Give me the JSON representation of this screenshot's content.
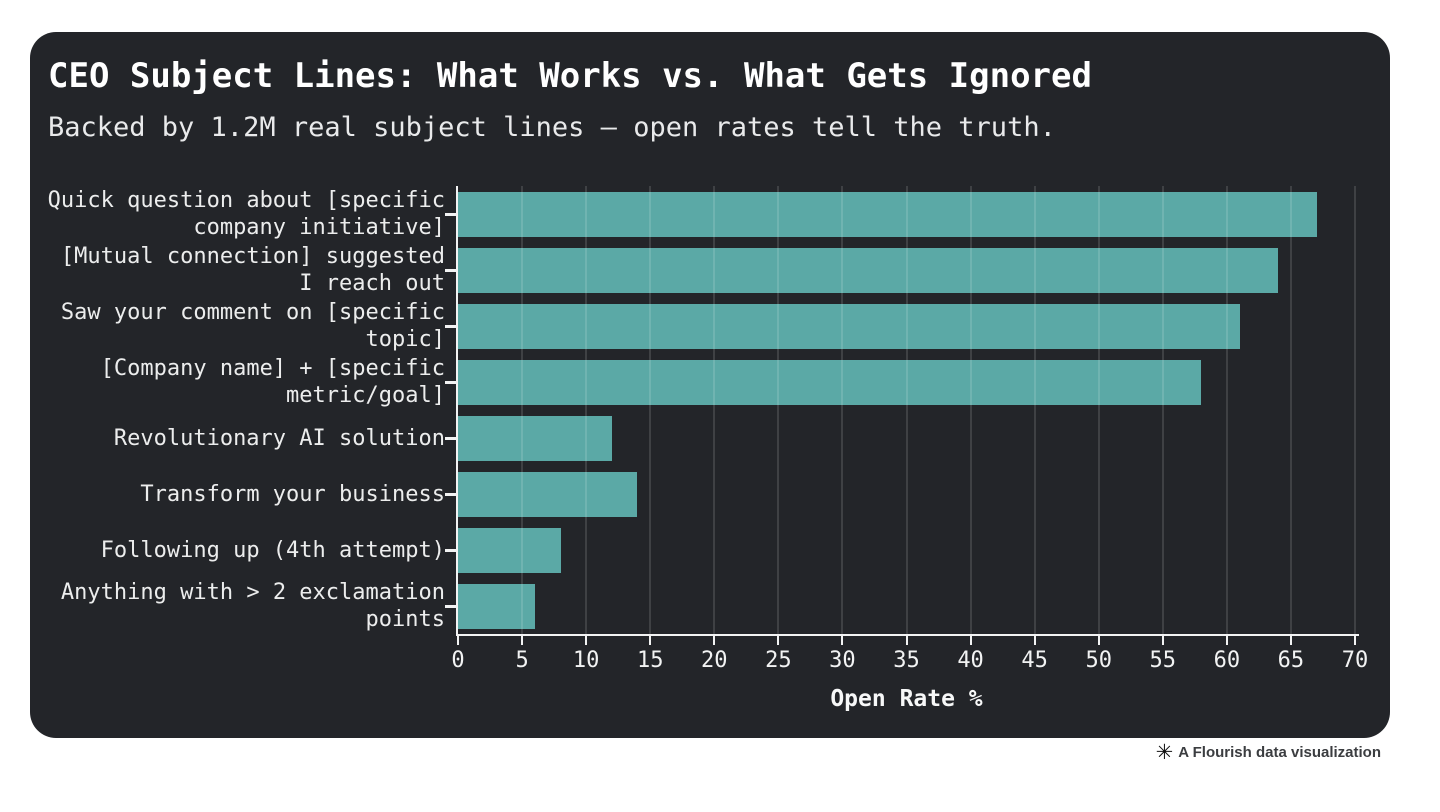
{
  "header": {
    "title": "CEO Subject Lines: What Works vs. What Gets Ignored",
    "subtitle": "Backed by 1.2M real subject lines — open rates tell the truth."
  },
  "footer": {
    "icon": "✳︎",
    "attribution": "A Flourish data visualization"
  },
  "chart_data": {
    "type": "bar",
    "orientation": "horizontal",
    "title": "CEO Subject Lines: What Works vs. What Gets Ignored",
    "subtitle": "Backed by 1.2M real subject lines — open rates tell the truth.",
    "categories": [
      "Quick question about [specific company initiative]",
      "[Mutual connection] suggested I reach out",
      "Saw your comment on [specific topic]",
      "[Company name] + [specific metric/goal]",
      "Revolutionary AI solution",
      "Transform your business",
      "Following up (4th attempt)",
      "Anything with > 2 exclamation points"
    ],
    "values": [
      67,
      64,
      61,
      58,
      12,
      14,
      8,
      6
    ],
    "xlabel": "Open Rate %",
    "ylabel": "",
    "xlim": [
      0,
      70
    ],
    "xticks": [
      0,
      5,
      10,
      15,
      20,
      25,
      30,
      35,
      40,
      45,
      50,
      55,
      60,
      65,
      70
    ],
    "grid": true,
    "legend": false,
    "colors": {
      "bar": "#5ba9a6",
      "card_background": "#232529",
      "page_background": "#ffffff",
      "axis": "#f2f3f3",
      "gridline": "rgba(255,255,255,0.13)"
    }
  }
}
